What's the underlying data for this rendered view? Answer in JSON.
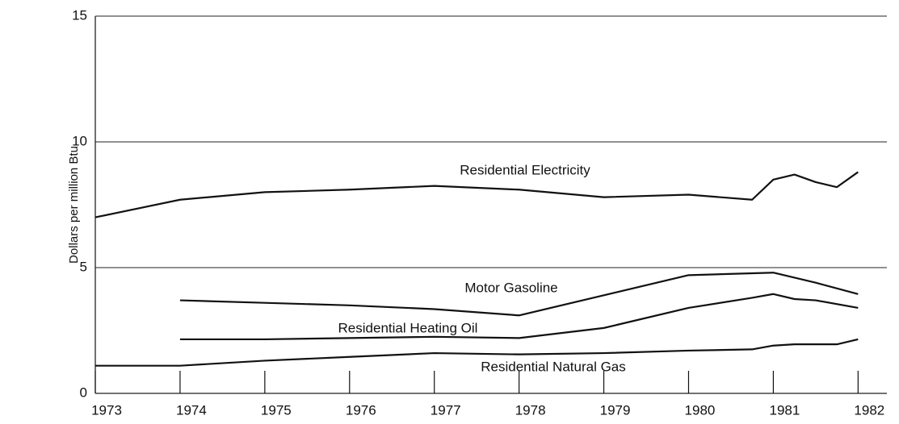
{
  "chart_data": {
    "type": "line",
    "y_label": "Dollars per million Btu",
    "xlim": [
      1973,
      1982.34
    ],
    "xticks": [
      1973,
      1974,
      1975,
      1976,
      1977,
      1978,
      1979,
      1980,
      1981,
      1982
    ],
    "ylim": [
      0,
      15
    ],
    "yticks": [
      0,
      5,
      10,
      15
    ],
    "grid": true,
    "series": [
      {
        "name": "Residential Electricity",
        "color": "#111111",
        "x": [
          1973,
          1974,
          1975,
          1976,
          1977,
          1978,
          1979,
          1980,
          1980.75,
          1981,
          1981.25,
          1981.5,
          1981.75,
          1982
        ],
        "values": [
          7.0,
          7.7,
          8.0,
          8.1,
          8.25,
          8.1,
          7.8,
          7.9,
          7.7,
          8.5,
          8.7,
          8.4,
          8.2,
          8.8
        ]
      },
      {
        "name": "Motor Gasoline",
        "color": "#111111",
        "x": [
          1974,
          1975,
          1976,
          1977,
          1978,
          1979,
          1980,
          1981,
          1981.25,
          1981.5,
          1982
        ],
        "values": [
          3.7,
          3.6,
          3.5,
          3.35,
          3.1,
          3.9,
          4.7,
          4.8,
          4.6,
          4.4,
          3.95
        ]
      },
      {
        "name": "Residential Heating Oil",
        "color": "#111111",
        "x": [
          1974,
          1975,
          1976,
          1977,
          1978,
          1979,
          1980,
          1980.75,
          1981,
          1981.25,
          1981.5,
          1982
        ],
        "values": [
          2.15,
          2.15,
          2.2,
          2.25,
          2.2,
          2.6,
          3.4,
          3.8,
          3.95,
          3.75,
          3.7,
          3.4
        ]
      },
      {
        "name": "Residential Natural Gas",
        "color": "#111111",
        "x": [
          1973,
          1974,
          1975,
          1976,
          1977,
          1978,
          1979,
          1980,
          1980.75,
          1981,
          1981.25,
          1981.75,
          1982
        ],
        "values": [
          1.1,
          1.1,
          1.3,
          1.45,
          1.6,
          1.55,
          1.6,
          1.7,
          1.75,
          1.9,
          1.95,
          1.95,
          2.15
        ]
      }
    ]
  }
}
